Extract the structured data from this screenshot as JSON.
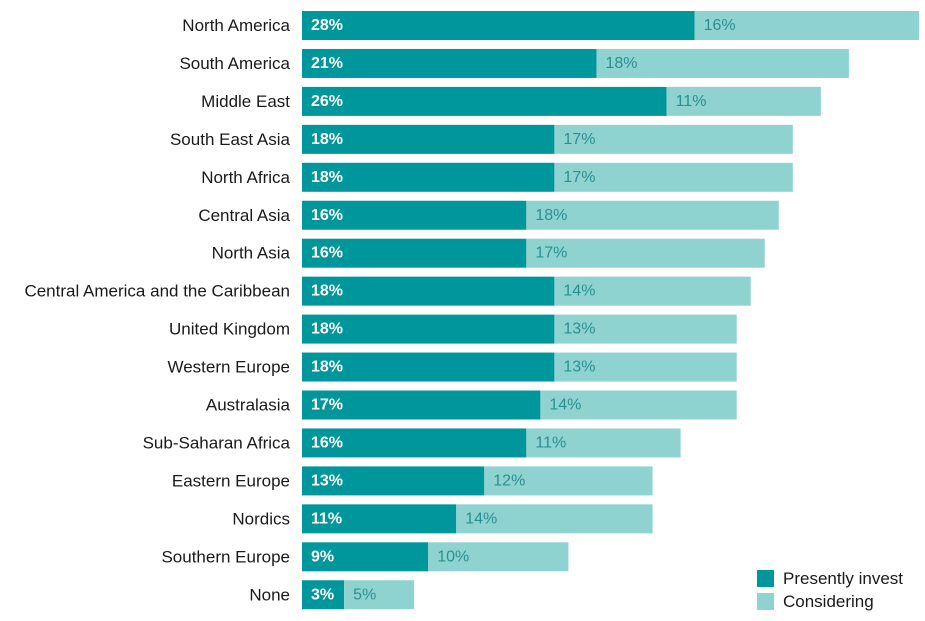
{
  "chart_data": {
    "type": "bar",
    "orientation": "horizontal",
    "stacked": true,
    "categories": [
      "North America",
      "South America",
      "Middle East",
      "South East Asia",
      "North Africa",
      "Central Asia",
      "North Asia",
      "Central America and the Caribbean",
      "United Kingdom",
      "Western Europe",
      "Australasia",
      "Sub-Saharan Africa",
      "Eastern Europe",
      "Nordics",
      "Southern Europe",
      "None"
    ],
    "series": [
      {
        "name": "Presently invest",
        "color": "#00979c",
        "values": [
          28,
          21,
          26,
          18,
          18,
          16,
          16,
          18,
          18,
          18,
          17,
          16,
          13,
          11,
          9,
          3
        ],
        "labels": [
          "28%",
          "21%",
          "26%",
          "18%",
          "18%",
          "16%",
          "16%",
          "18%",
          "18%",
          "18%",
          "17%",
          "16%",
          "13%",
          "11%",
          "9%",
          "3%"
        ]
      },
      {
        "name": "Considering",
        "color": "#8fd3d0",
        "values": [
          16,
          18,
          11,
          17,
          17,
          18,
          17,
          14,
          13,
          13,
          14,
          11,
          12,
          14,
          10,
          5
        ],
        "labels": [
          "16%",
          "18%",
          "11%",
          "17%",
          "17%",
          "18%",
          "17%",
          "14%",
          "13%",
          "13%",
          "14%",
          "11%",
          "12%",
          "14%",
          "10%",
          "5%"
        ]
      }
    ],
    "xlim": [
      0,
      44
    ],
    "grid": false,
    "legend": "bottom-right",
    "title": "",
    "xlabel": "",
    "ylabel": ""
  }
}
